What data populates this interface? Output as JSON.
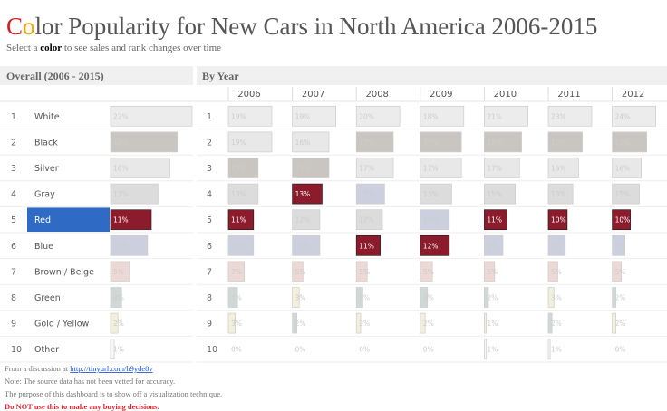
{
  "header": {
    "title_word": "Color",
    "title_rest": "Popularity for New Cars in North America 2006-2015",
    "subtitle": [
      "Select a ",
      "color",
      " to see sales and rank changes over time"
    ]
  },
  "overall_heading": "Overall (2006 - 2015)",
  "by_year_heading": "By Year",
  "rows": [
    {
      "rank": 1,
      "name": "White",
      "overall": {
        "value": 22,
        "label": "22%"
      },
      "fill": "#ececec",
      "selected": false
    },
    {
      "rank": 2,
      "name": "Black",
      "overall": {
        "value": 18,
        "label": "18%"
      },
      "fill": "#c9c6c1",
      "selected": false
    },
    {
      "rank": 3,
      "name": "Silver",
      "overall": {
        "value": 16,
        "label": "16%"
      },
      "fill": "#e8e8e8",
      "selected": false
    },
    {
      "rank": 4,
      "name": "Gray",
      "overall": {
        "value": 13,
        "label": "13%"
      },
      "fill": "#dcdcdc",
      "selected": false
    },
    {
      "rank": 5,
      "name": "Red",
      "overall": {
        "value": 11,
        "label": "11%"
      },
      "fill": "#8c1b2b",
      "selected": true
    },
    {
      "rank": 6,
      "name": "Blue",
      "overall": {
        "value": 10,
        "label": "10%"
      },
      "fill": "#ccd0de",
      "selected": false
    },
    {
      "rank": 7,
      "name": "Brown / Beige",
      "overall": {
        "value": 5,
        "label": "5%"
      },
      "fill": "#ecd8d4",
      "selected": false
    },
    {
      "rank": 8,
      "name": "Green",
      "overall": {
        "value": 3,
        "label": "3%"
      },
      "fill": "#cfd8d5",
      "selected": false
    },
    {
      "rank": 9,
      "name": "Gold / Yellow",
      "overall": {
        "value": 2,
        "label": "2%"
      },
      "fill": "#f2efda",
      "selected": false
    },
    {
      "rank": 10,
      "name": "Other",
      "overall": {
        "value": 1,
        "label": "1%"
      },
      "fill": "#f7f7f7",
      "selected": false
    }
  ],
  "years": [
    {
      "year": "2006",
      "cells": [
        {
          "value": 19,
          "label": "19%",
          "fill": "#ececec"
        },
        {
          "value": 19,
          "label": "19%",
          "fill": "#e8e8e8"
        },
        {
          "value": 13,
          "label": "13%",
          "fill": "#c9c6c1"
        },
        {
          "value": 13,
          "label": "13%",
          "fill": "#dcdcdc"
        },
        {
          "value": 11,
          "label": "11%",
          "fill": "#8c1b2b",
          "selected": true
        },
        {
          "value": 11,
          "label": "11%",
          "fill": "#ccd0de"
        },
        {
          "value": 7,
          "label": "7%",
          "fill": "#ecd8d4"
        },
        {
          "value": 4,
          "label": "4%",
          "fill": "#cfd8d5"
        },
        {
          "value": 3,
          "label": "3%",
          "fill": "#f2efda"
        },
        {
          "value": 0,
          "label": "0%",
          "fill": "#f7f7f7"
        }
      ]
    },
    {
      "year": "2007",
      "cells": [
        {
          "value": 19,
          "label": "19%",
          "fill": "#ececec"
        },
        {
          "value": 16,
          "label": "16%",
          "fill": "#e8e8e8"
        },
        {
          "value": 16,
          "label": "16%",
          "fill": "#c9c6c1"
        },
        {
          "value": 13,
          "label": "13%",
          "fill": "#8c1b2b",
          "selected": true
        },
        {
          "value": 12,
          "label": "12%",
          "fill": "#dcdcdc"
        },
        {
          "value": 12,
          "label": "12%",
          "fill": "#ccd0de"
        },
        {
          "value": 5,
          "label": "5%",
          "fill": "#ecd8d4"
        },
        {
          "value": 3,
          "label": "3%",
          "fill": "#f2efda"
        },
        {
          "value": 2,
          "label": "2%",
          "fill": "#cfd8d5"
        },
        {
          "value": 0,
          "label": "0%",
          "fill": "#f7f7f7"
        }
      ]
    },
    {
      "year": "2008",
      "cells": [
        {
          "value": 20,
          "label": "20%",
          "fill": "#ececec"
        },
        {
          "value": 17,
          "label": "17%",
          "fill": "#c9c6c1"
        },
        {
          "value": 17,
          "label": "17%",
          "fill": "#e8e8e8"
        },
        {
          "value": 13,
          "label": "13%",
          "fill": "#ccd0de"
        },
        {
          "value": 12,
          "label": "12%",
          "fill": "#dcdcdc"
        },
        {
          "value": 11,
          "label": "11%",
          "fill": "#8c1b2b",
          "selected": true
        },
        {
          "value": 5,
          "label": "5%",
          "fill": "#ecd8d4"
        },
        {
          "value": 3,
          "label": "3%",
          "fill": "#cfd8d5"
        },
        {
          "value": 2,
          "label": "2%",
          "fill": "#f2efda"
        },
        {
          "value": 0,
          "label": "0%",
          "fill": "#f7f7f7"
        }
      ]
    },
    {
      "year": "2009",
      "cells": [
        {
          "value": 18,
          "label": "18%",
          "fill": "#ececec"
        },
        {
          "value": 17,
          "label": "17%",
          "fill": "#c9c6c1"
        },
        {
          "value": 17,
          "label": "17%",
          "fill": "#e8e8e8"
        },
        {
          "value": 13,
          "label": "13%",
          "fill": "#dcdcdc"
        },
        {
          "value": 12,
          "label": "12%",
          "fill": "#ccd0de"
        },
        {
          "value": 12,
          "label": "12%",
          "fill": "#8c1b2b",
          "selected": true
        },
        {
          "value": 5,
          "label": "5%",
          "fill": "#ecd8d4"
        },
        {
          "value": 3,
          "label": "3%",
          "fill": "#cfd8d5"
        },
        {
          "value": 2,
          "label": "2%",
          "fill": "#f2efda"
        },
        {
          "value": 0,
          "label": "0%",
          "fill": "#f7f7f7"
        }
      ]
    },
    {
      "year": "2010",
      "cells": [
        {
          "value": 21,
          "label": "21%",
          "fill": "#ececec"
        },
        {
          "value": 18,
          "label": "18%",
          "fill": "#c9c6c1"
        },
        {
          "value": 17,
          "label": "17%",
          "fill": "#e8e8e8"
        },
        {
          "value": 15,
          "label": "15%",
          "fill": "#dcdcdc"
        },
        {
          "value": 11,
          "label": "11%",
          "fill": "#8c1b2b",
          "selected": true
        },
        {
          "value": 9,
          "label": "9%",
          "fill": "#ccd0de"
        },
        {
          "value": 5,
          "label": "5%",
          "fill": "#ecd8d4"
        },
        {
          "value": 2,
          "label": "2%",
          "fill": "#cfd8d5"
        },
        {
          "value": 1,
          "label": "1%",
          "fill": "#f2efda"
        },
        {
          "value": 1,
          "label": "1%",
          "fill": "#f7f7f7"
        }
      ]
    },
    {
      "year": "2011",
      "cells": [
        {
          "value": 23,
          "label": "23%",
          "fill": "#ececec"
        },
        {
          "value": 18,
          "label": "18%",
          "fill": "#c9c6c1"
        },
        {
          "value": 16,
          "label": "16%",
          "fill": "#e8e8e8"
        },
        {
          "value": 13,
          "label": "13%",
          "fill": "#dcdcdc"
        },
        {
          "value": 10,
          "label": "10%",
          "fill": "#8c1b2b",
          "selected": true
        },
        {
          "value": 9,
          "label": "9%",
          "fill": "#ccd0de"
        },
        {
          "value": 5,
          "label": "5%",
          "fill": "#ecd8d4"
        },
        {
          "value": 3,
          "label": "3%",
          "fill": "#f2efda"
        },
        {
          "value": 2,
          "label": "2%",
          "fill": "#cfd8d5"
        },
        {
          "value": 1,
          "label": "1%",
          "fill": "#f7f7f7"
        }
      ]
    },
    {
      "year": "2012",
      "cells": [
        {
          "value": 24,
          "label": "24%",
          "fill": "#ececec"
        },
        {
          "value": 19,
          "label": "19%",
          "fill": "#c9c6c1"
        },
        {
          "value": 16,
          "label": "16%",
          "fill": "#e8e8e8"
        },
        {
          "value": 15,
          "label": "15%",
          "fill": "#dcdcdc"
        },
        {
          "value": 10,
          "label": "10%",
          "fill": "#8c1b2b",
          "selected": true
        },
        {
          "value": 7,
          "label": "7%",
          "fill": "#ccd0de"
        },
        {
          "value": 5,
          "label": "5%",
          "fill": "#ecd8d4"
        },
        {
          "value": 2,
          "label": "2%",
          "fill": "#cfd8d5"
        },
        {
          "value": 2,
          "label": "2%",
          "fill": "#f2efda"
        },
        {
          "value": 0,
          "label": "0%",
          "fill": "#f7f7f7"
        }
      ]
    }
  ],
  "footer": {
    "source_prefix": "From a discussion at ",
    "source_link": "http://tinyurl.com/h9yde8v",
    "note": "Note: The source data has not been vetted for accuracy.",
    "purpose": "The purpose of this dashboard is to show off a visualization technique.",
    "warning": "Do NOT use this to make any buying decisions."
  }
}
